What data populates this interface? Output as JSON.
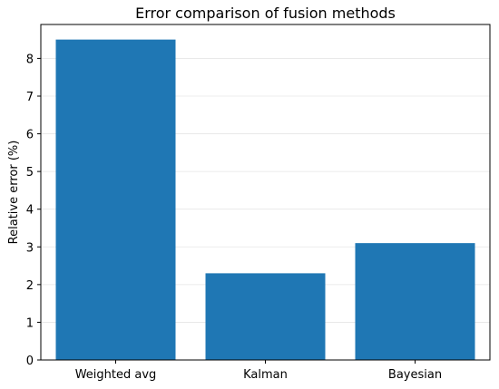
{
  "chart_data": {
    "type": "bar",
    "title": "Error comparison of fusion methods",
    "xlabel": "",
    "ylabel": "Relative error (%)",
    "categories": [
      "Weighted avg",
      "Kalman",
      "Bayesian"
    ],
    "values": [
      8.5,
      2.3,
      3.1
    ],
    "ylim": [
      0,
      8.9
    ],
    "yticks": [
      "0",
      "1",
      "2",
      "3",
      "4",
      "5",
      "6",
      "7",
      "8"
    ],
    "grid": true,
    "legend": "none",
    "colors": {
      "bar": "#1f77b4",
      "grid": "#e6e6e6",
      "axis": "#000000"
    }
  }
}
